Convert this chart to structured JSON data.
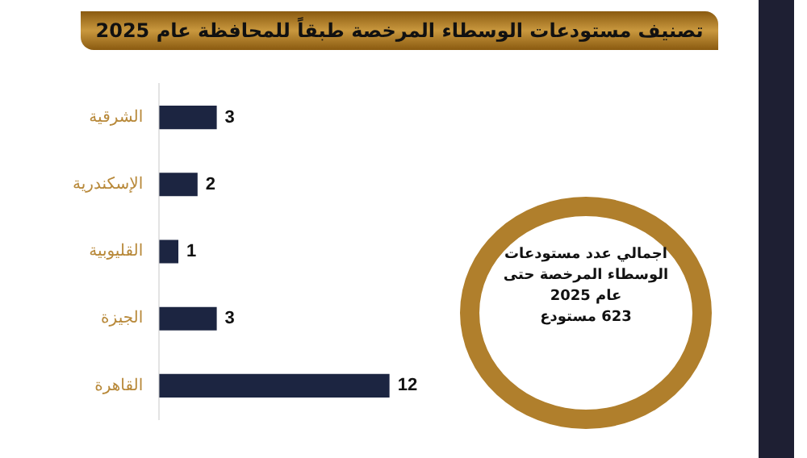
{
  "chart_data": {
    "type": "bar",
    "orientation": "horizontal",
    "title": "تصنيف مستودعات الوسطاء المرخصة طبقاً للمحافظة عام 2025",
    "categories": [
      "الشرقية",
      "الإسكندرية",
      "القليوبية",
      "الجيزة",
      "القاهرة"
    ],
    "values": [
      3,
      2,
      1,
      3,
      12
    ],
    "color": "#1c2541",
    "data_labels": true,
    "legend": false,
    "tick_labels": "y",
    "annotations": [
      "اجمالي عدد مستودعات\nالوسطاء المرخصة حتى\nعام 2025\n623 مستودع"
    ]
  }
}
